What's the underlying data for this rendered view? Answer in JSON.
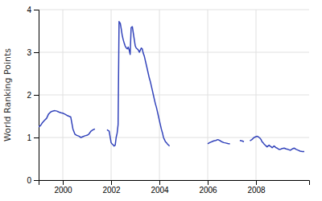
{
  "chart_data": {
    "type": "line",
    "ylabel": "World Ranking Points",
    "color": "#3344bb",
    "xlim": [
      1999.0,
      2010.2
    ],
    "ylim": [
      0,
      4
    ],
    "xticks": [
      2000,
      2002,
      2004,
      2006,
      2008
    ],
    "yticks": [
      0,
      1,
      2,
      3,
      4
    ],
    "grid": true,
    "x": [
      1999.0,
      1999.08,
      1999.16,
      1999.24,
      1999.33,
      1999.41,
      1999.5,
      1999.58,
      1999.67,
      1999.75,
      1999.83,
      1999.92,
      2000.0,
      2000.08,
      2000.17,
      2000.25,
      2000.33,
      2000.42,
      2000.5,
      2000.58,
      2000.67,
      2000.75,
      2000.83,
      2000.92,
      2001.0,
      2001.08,
      2001.17,
      2001.25,
      2001.33,
      null,
      2001.83,
      2001.92,
      2002.0,
      2002.04,
      2002.08,
      2002.12,
      2002.17,
      2002.21,
      2002.25,
      2002.29,
      2002.33,
      2002.38,
      2002.42,
      2002.46,
      2002.5,
      2002.54,
      2002.58,
      2002.63,
      2002.67,
      2002.71,
      2002.75,
      2002.79,
      2002.83,
      2002.88,
      2002.92,
      2002.96,
      2003.0,
      2003.04,
      2003.08,
      2003.13,
      2003.17,
      2003.21,
      2003.25,
      2003.29,
      2003.33,
      2003.38,
      2003.42,
      2003.46,
      2003.5,
      2003.54,
      2003.58,
      2003.63,
      2003.67,
      2003.71,
      2003.75,
      2003.79,
      2003.83,
      2003.88,
      2003.92,
      2003.96,
      2004.0,
      2004.04,
      2004.08,
      2004.13,
      2004.17,
      2004.21,
      2004.25,
      2004.29,
      2004.33,
      2004.38,
      2004.42,
      null,
      2006.0,
      2006.08,
      2006.17,
      2006.25,
      2006.33,
      2006.42,
      2006.5,
      2006.58,
      2006.67,
      2006.75,
      2006.83,
      2006.92,
      null,
      2007.33,
      2007.42,
      2007.5,
      null,
      2007.75,
      2007.83,
      2007.92,
      2008.0,
      2008.04,
      2008.08,
      2008.13,
      2008.17,
      2008.21,
      2008.25,
      2008.29,
      2008.33,
      2008.38,
      2008.42,
      2008.46,
      2008.5,
      2008.54,
      2008.58,
      2008.63,
      2008.67,
      2008.71,
      2008.75,
      2008.79,
      2008.83,
      2008.88,
      2008.92,
      2008.96,
      2009.0,
      2009.08,
      2009.17,
      2009.25,
      2009.33,
      2009.42,
      2009.5,
      2009.58,
      2009.67,
      2009.75,
      2009.83,
      2009.92,
      2010.0
    ],
    "values": [
      1.25,
      1.28,
      1.35,
      1.4,
      1.45,
      1.55,
      1.6,
      1.62,
      1.63,
      1.62,
      1.6,
      1.58,
      1.57,
      1.55,
      1.52,
      1.5,
      1.48,
      1.2,
      1.08,
      1.05,
      1.03,
      1.0,
      1.02,
      1.04,
      1.05,
      1.08,
      1.15,
      1.18,
      1.2,
      null,
      1.18,
      1.15,
      0.88,
      0.85,
      0.83,
      0.8,
      0.82,
      1.0,
      1.1,
      1.3,
      3.72,
      3.68,
      3.55,
      3.4,
      3.3,
      3.22,
      3.15,
      3.1,
      3.08,
      3.12,
      3.05,
      2.95,
      3.58,
      3.6,
      3.45,
      3.3,
      3.15,
      3.1,
      3.08,
      3.05,
      3.0,
      3.05,
      3.1,
      3.08,
      2.98,
      2.9,
      2.8,
      2.7,
      2.6,
      2.5,
      2.4,
      2.3,
      2.2,
      2.1,
      2.0,
      1.9,
      1.8,
      1.7,
      1.6,
      1.5,
      1.4,
      1.3,
      1.2,
      1.1,
      1.0,
      0.95,
      0.9,
      0.88,
      0.85,
      0.82,
      0.8,
      null,
      0.85,
      0.88,
      0.9,
      0.92,
      0.93,
      0.95,
      0.93,
      0.9,
      0.88,
      0.87,
      0.86,
      0.85,
      null,
      0.93,
      0.92,
      0.9,
      null,
      0.92,
      0.95,
      1.0,
      1.02,
      1.03,
      1.02,
      1.0,
      0.98,
      0.95,
      0.9,
      0.88,
      0.85,
      0.82,
      0.8,
      0.78,
      0.8,
      0.82,
      0.8,
      0.78,
      0.76,
      0.78,
      0.8,
      0.78,
      0.76,
      0.75,
      0.73,
      0.72,
      0.72,
      0.74,
      0.75,
      0.73,
      0.72,
      0.7,
      0.73,
      0.75,
      0.72,
      0.7,
      0.68,
      0.67,
      0.67
    ]
  }
}
